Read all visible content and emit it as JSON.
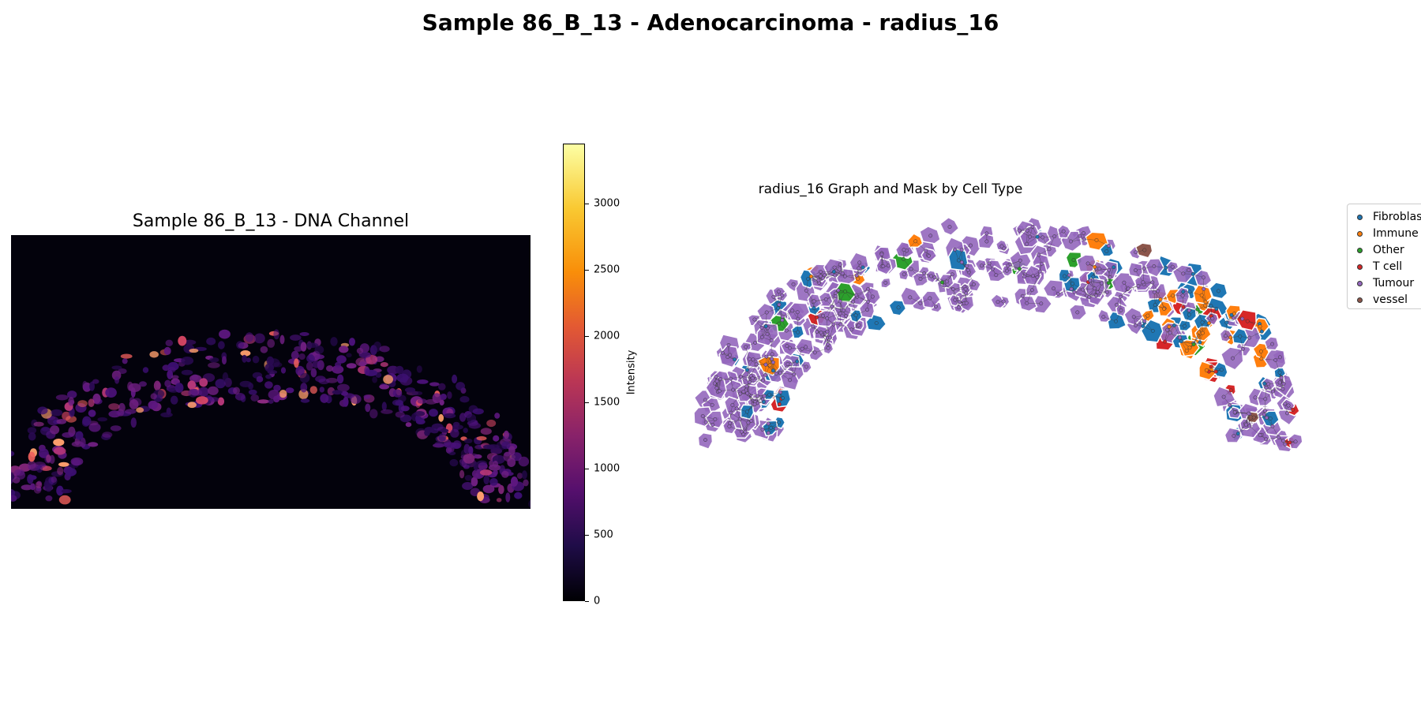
{
  "figure": {
    "suptitle": "Sample 86_B_13 - Adenocarcinoma - radius_16"
  },
  "chart_data": [
    {
      "type": "heatmap",
      "title": "Sample 86_B_13 - DNA Channel",
      "colormap": "inferno",
      "colorbar": {
        "label": "Intensity",
        "range": [
          0,
          3450
        ],
        "ticks": [
          0,
          500,
          1000,
          1500,
          2000,
          2500,
          3000
        ]
      }
    },
    {
      "type": "scatter",
      "title": "radius_16 Graph and Mask by Cell Type",
      "legend_position": "upper-right-outside",
      "series": [
        {
          "name": "Fibroblast",
          "color": "#1f77b4"
        },
        {
          "name": "Immune",
          "color": "#ff7f0e"
        },
        {
          "name": "Other",
          "color": "#2ca02c"
        },
        {
          "name": "T cell",
          "color": "#d62728"
        },
        {
          "name": "Tumour",
          "color": "#9467bd"
        },
        {
          "name": "vessel",
          "color": "#8c564b"
        }
      ]
    }
  ]
}
